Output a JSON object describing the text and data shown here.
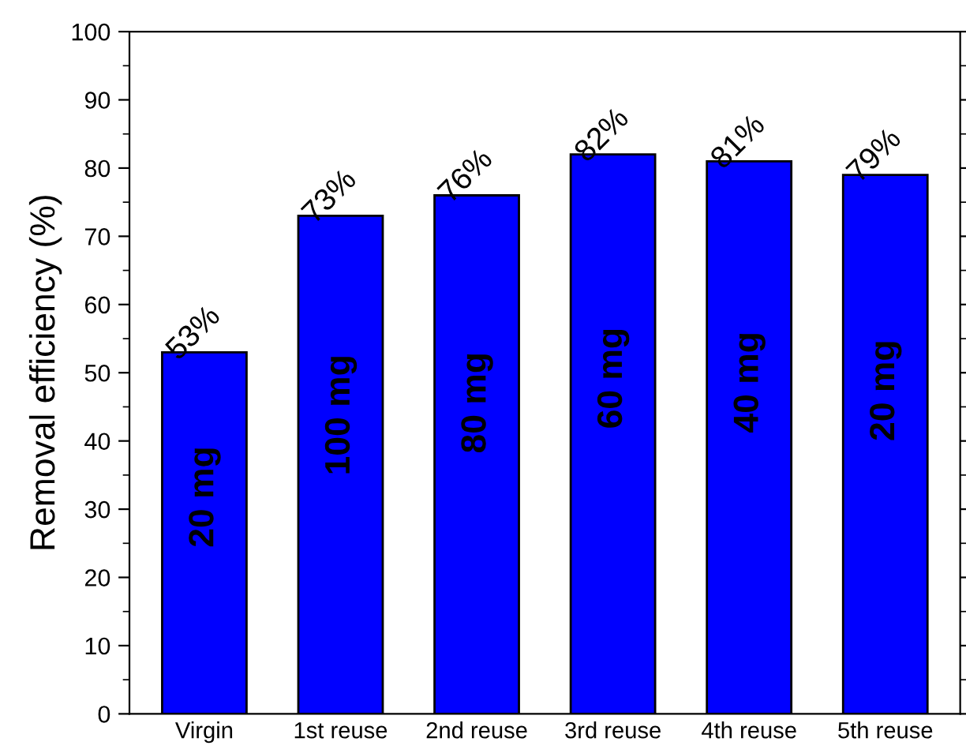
{
  "chart_data": {
    "type": "bar",
    "ylabel": "Removal efficiency (%)",
    "categories": [
      "Virgin",
      "1st reuse",
      "2nd reuse",
      "3rd reuse",
      "4th reuse",
      "5th reuse"
    ],
    "values": [
      53,
      73,
      76,
      82,
      81,
      79
    ],
    "color": "#0000ff",
    "value_labels": [
      "53%",
      "73%",
      "76%",
      "82%",
      "81%",
      "79%"
    ],
    "ylim": [
      0,
      100
    ],
    "yticks": [
      0,
      10,
      20,
      30,
      40,
      50,
      60,
      70,
      80,
      90,
      100
    ],
    "grid": false,
    "legend": false,
    "annotations": [
      "20 mg",
      "100 mg",
      "80 mg",
      "60 mg",
      "40 mg",
      "20 mg"
    ]
  }
}
